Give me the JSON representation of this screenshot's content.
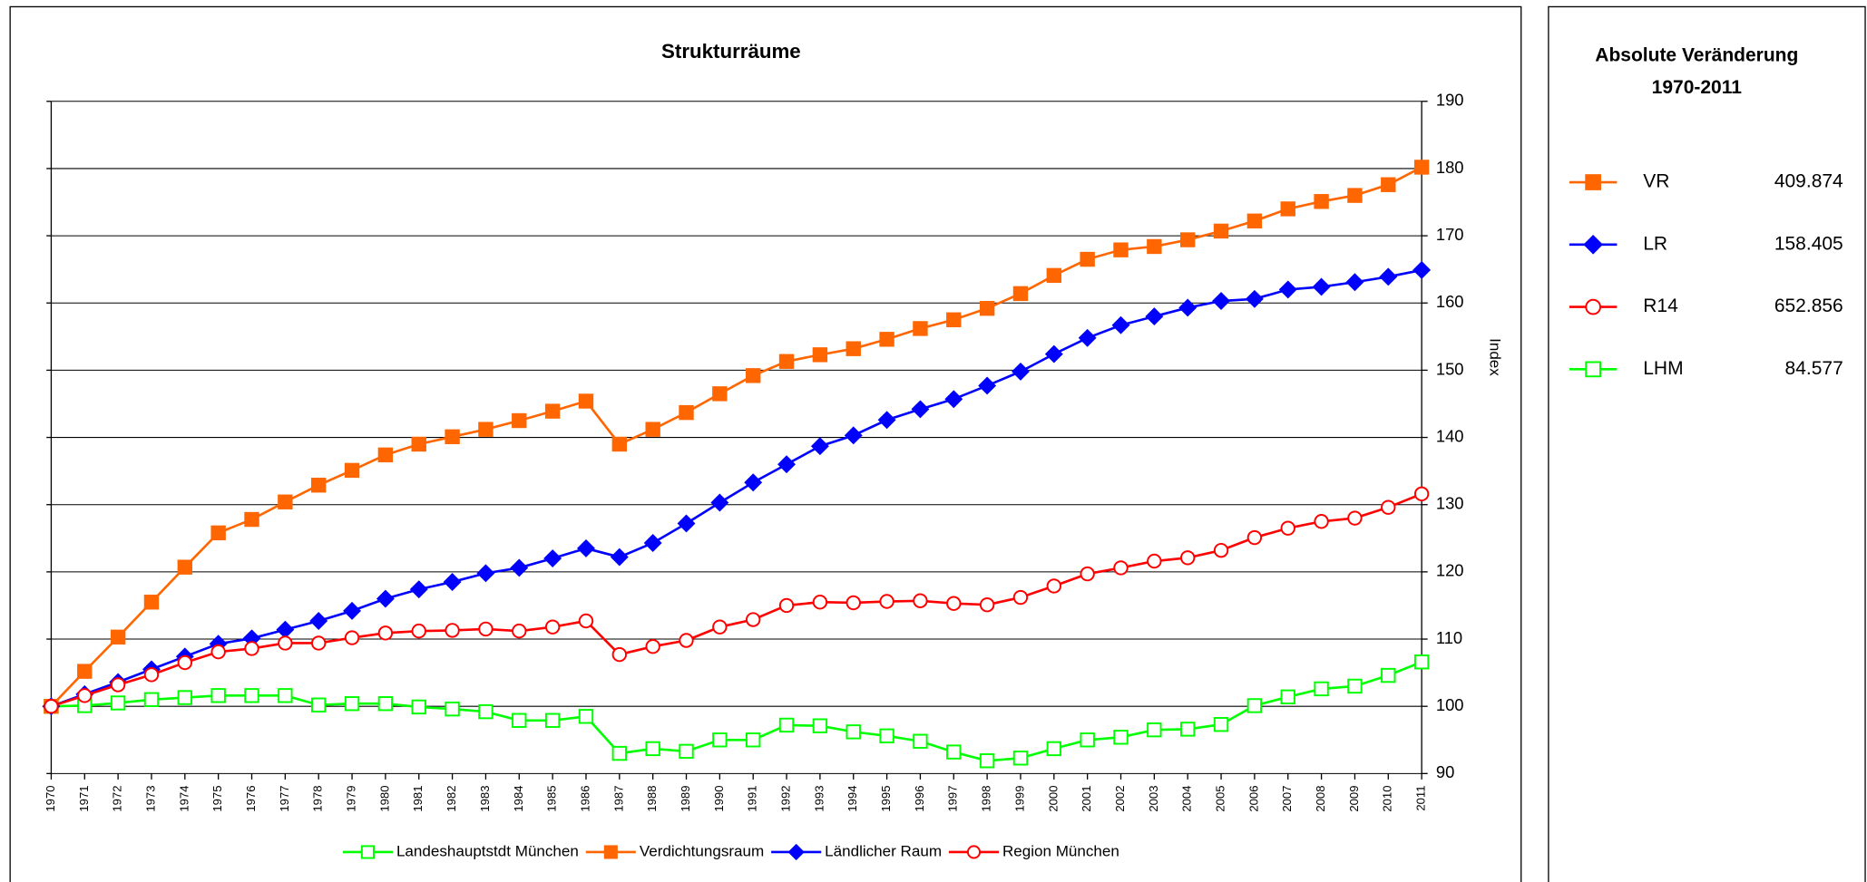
{
  "chart_data": {
    "type": "line",
    "title": "Strukturräume",
    "y_axis_label": "Index",
    "categories": [
      "1970",
      "1971",
      "1972",
      "1973",
      "1974",
      "1975",
      "1976",
      "1977",
      "1978",
      "1979",
      "1980",
      "1981",
      "1982",
      "1983",
      "1984",
      "1985",
      "1986",
      "1987",
      "1988",
      "1989",
      "1990",
      "1991",
      "1992",
      "1993",
      "1994",
      "1995",
      "1996",
      "1997",
      "1998",
      "1999",
      "2000",
      "2001",
      "2002",
      "2003",
      "2004",
      "2005",
      "2006",
      "2007",
      "2008",
      "2009",
      "2010",
      "2011"
    ],
    "ylim": [
      90,
      190
    ],
    "yticks": [
      90,
      100,
      110,
      120,
      130,
      140,
      150,
      160,
      170,
      180,
      190
    ],
    "grid": true,
    "series": [
      {
        "name": "Landeshauptstdt München",
        "color": "#00ff00",
        "marker": "square-open",
        "values": [
          100,
          100.1,
          100.5,
          101.0,
          101.3,
          101.6,
          101.6,
          101.6,
          100.2,
          100.4,
          100.4,
          99.9,
          99.6,
          99.2,
          97.9,
          97.9,
          98.5,
          93.0,
          93.7,
          93.3,
          95.0,
          95.0,
          97.2,
          97.1,
          96.2,
          95.6,
          94.8,
          93.2,
          91.9,
          92.3,
          93.7,
          95.0,
          95.4,
          96.5,
          96.6,
          97.3,
          100.1,
          101.4,
          102.6,
          103.0,
          104.6,
          106.6
        ]
      },
      {
        "name": "Verdichtungsraum",
        "color": "#ff6600",
        "marker": "square",
        "values": [
          100,
          105.2,
          110.3,
          115.5,
          120.7,
          125.8,
          127.8,
          130.4,
          132.9,
          135.1,
          137.4,
          139.0,
          140.1,
          141.2,
          142.5,
          143.9,
          145.4,
          139.0,
          141.2,
          143.7,
          146.5,
          149.2,
          151.3,
          152.3,
          153.2,
          154.6,
          156.2,
          157.5,
          159.2,
          161.4,
          164.1,
          166.5,
          167.9,
          168.4,
          169.4,
          170.7,
          172.2,
          174.0,
          175.1,
          176.0,
          177.6,
          180.2
        ]
      },
      {
        "name": "Ländlicher Raum",
        "color": "#0000ff",
        "marker": "diamond",
        "values": [
          100,
          101.8,
          103.6,
          105.5,
          107.4,
          109.3,
          110.1,
          111.4,
          112.7,
          114.2,
          116.0,
          117.4,
          118.5,
          119.8,
          120.6,
          122.0,
          123.5,
          122.2,
          124.3,
          127.2,
          130.3,
          133.3,
          136.0,
          138.7,
          140.3,
          142.6,
          144.2,
          145.7,
          147.7,
          149.8,
          152.4,
          154.8,
          156.7,
          158.0,
          159.3,
          160.3,
          160.6,
          162.0,
          162.4,
          163.1,
          163.9,
          164.9
        ]
      },
      {
        "name": "Region München",
        "color": "#ff0000",
        "marker": "circle-open",
        "values": [
          100,
          101.6,
          103.2,
          104.7,
          106.5,
          108.1,
          108.6,
          109.4,
          109.4,
          110.2,
          110.9,
          111.2,
          111.3,
          111.5,
          111.2,
          111.8,
          112.7,
          107.7,
          108.9,
          109.8,
          111.8,
          112.9,
          115.0,
          115.5,
          115.4,
          115.6,
          115.7,
          115.3,
          115.1,
          116.2,
          117.9,
          119.7,
          120.6,
          121.6,
          122.1,
          123.2,
          125.1,
          126.5,
          127.5,
          128.0,
          129.6,
          131.6
        ]
      }
    ]
  },
  "side_panel": {
    "title": [
      "Absolute Veränderung",
      "1970-2011"
    ],
    "entries": [
      {
        "name": "VR",
        "value": "409.874",
        "color": "#ff6600",
        "marker": "square"
      },
      {
        "name": "LR",
        "value": "158.405",
        "color": "#0000ff",
        "marker": "diamond"
      },
      {
        "name": "R14",
        "value": "652.856",
        "color": "#ff0000",
        "marker": "circle-open"
      },
      {
        "name": "LHM",
        "value": "84.577",
        "color": "#00ff00",
        "marker": "square-open"
      }
    ]
  }
}
